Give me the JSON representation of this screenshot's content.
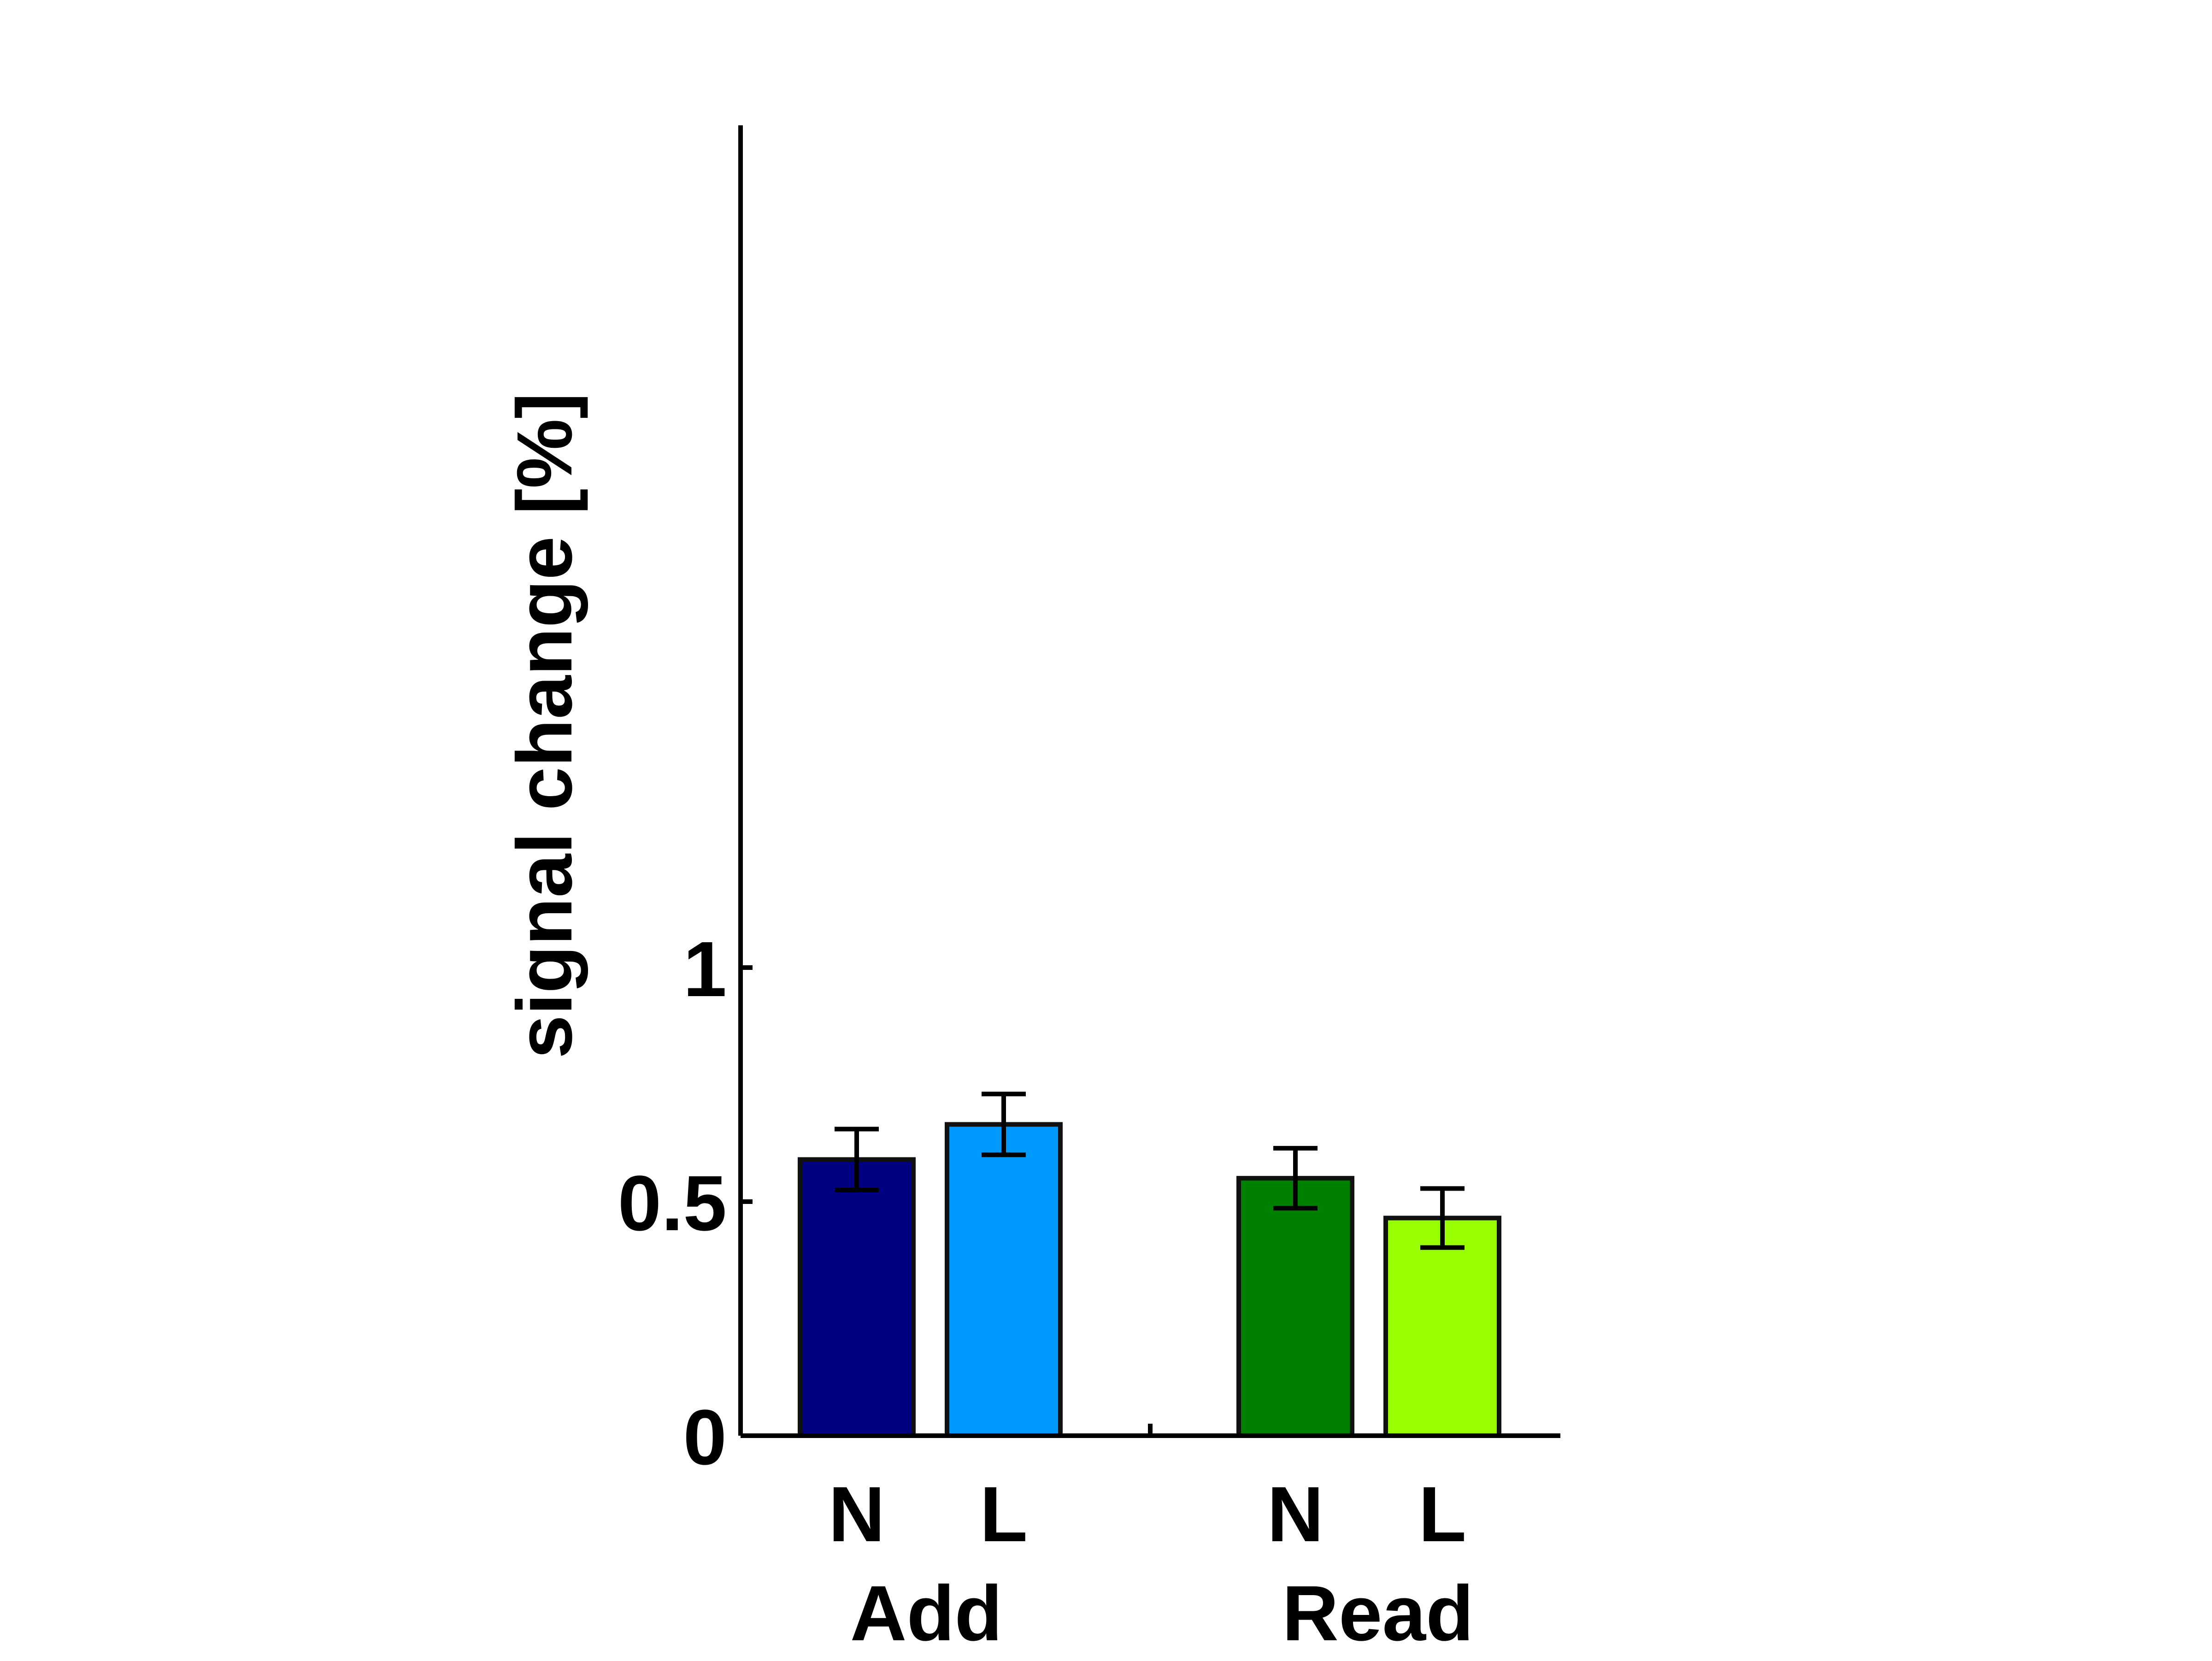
{
  "chart_data": {
    "type": "bar",
    "title": "",
    "xlabel": "",
    "ylabel": "signal change [%]",
    "ylim": [
      0,
      1.4
    ],
    "yticks": [
      {
        "value": 0,
        "label": "0"
      },
      {
        "value": 0.5,
        "label": "0.5"
      },
      {
        "value": 1,
        "label": "1"
      }
    ],
    "grid": false,
    "legend": "none",
    "groups": [
      {
        "label": "Add",
        "bars": [
          {
            "label": "N",
            "value": 0.59,
            "error": 0.065,
            "color": "#000080"
          },
          {
            "label": "L",
            "value": 0.665,
            "error": 0.065,
            "color": "#0099ff"
          }
        ]
      },
      {
        "label": "Read",
        "bars": [
          {
            "label": "N",
            "value": 0.55,
            "error": 0.064,
            "color": "#008000"
          },
          {
            "label": "L",
            "value": 0.465,
            "error": 0.063,
            "color": "#99ff00"
          }
        ]
      }
    ]
  }
}
